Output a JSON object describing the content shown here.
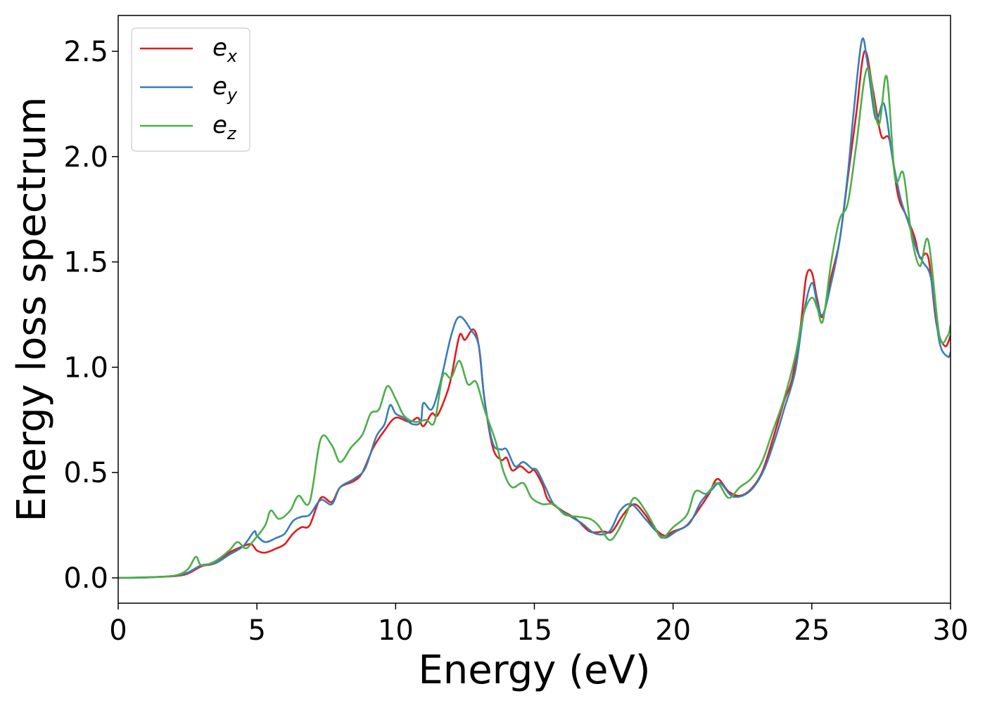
{
  "chart_data": {
    "type": "line",
    "xlabel": "Energy (eV)",
    "ylabel": "Energy loss spectrum",
    "xlim": [
      0,
      30
    ],
    "ylim": [
      -0.12,
      2.67
    ],
    "xticks": [
      0,
      5,
      10,
      15,
      20,
      25,
      30
    ],
    "xtick_labels": [
      "0",
      "5",
      "10",
      "15",
      "20",
      "25",
      "30"
    ],
    "yticks": [
      0.0,
      0.5,
      1.0,
      1.5,
      2.0,
      2.5
    ],
    "ytick_labels": [
      "0.0",
      "0.5",
      "1.0",
      "1.5",
      "2.0",
      "2.5"
    ],
    "grid": false,
    "legend_position": "top-left",
    "series": [
      {
        "name": "e",
        "subscript": "x",
        "color": "#e41a1c",
        "points": [
          [
            0,
            0
          ],
          [
            1,
            0.002
          ],
          [
            2,
            0.008
          ],
          [
            2.5,
            0.02
          ],
          [
            3,
            0.055
          ],
          [
            3.5,
            0.07
          ],
          [
            4,
            0.12
          ],
          [
            4.5,
            0.15
          ],
          [
            4.8,
            0.16
          ],
          [
            5,
            0.13
          ],
          [
            5.3,
            0.12
          ],
          [
            5.7,
            0.14
          ],
          [
            6,
            0.16
          ],
          [
            6.3,
            0.21
          ],
          [
            6.6,
            0.24
          ],
          [
            6.9,
            0.25
          ],
          [
            7.3,
            0.38
          ],
          [
            7.7,
            0.36
          ],
          [
            8,
            0.43
          ],
          [
            8.5,
            0.46
          ],
          [
            8.8,
            0.5
          ],
          [
            9.2,
            0.62
          ],
          [
            9.6,
            0.7
          ],
          [
            10,
            0.76
          ],
          [
            10.5,
            0.74
          ],
          [
            10.8,
            0.76
          ],
          [
            11.0,
            0.72
          ],
          [
            11.3,
            0.78
          ],
          [
            11.5,
            0.77
          ],
          [
            11.8,
            0.86
          ],
          [
            12,
            0.95
          ],
          [
            12.3,
            1.15
          ],
          [
            12.5,
            1.13
          ],
          [
            12.8,
            1.18
          ],
          [
            13,
            1.1
          ],
          [
            13.2,
            0.85
          ],
          [
            13.5,
            0.62
          ],
          [
            13.8,
            0.56
          ],
          [
            14,
            0.57
          ],
          [
            14.2,
            0.51
          ],
          [
            14.5,
            0.53
          ],
          [
            14.8,
            0.5
          ],
          [
            15,
            0.51
          ],
          [
            15.3,
            0.44
          ],
          [
            15.5,
            0.37
          ],
          [
            16,
            0.32
          ],
          [
            16.5,
            0.28
          ],
          [
            17,
            0.22
          ],
          [
            17.5,
            0.22
          ],
          [
            17.8,
            0.22
          ],
          [
            18.2,
            0.3
          ],
          [
            18.6,
            0.35
          ],
          [
            19,
            0.3
          ],
          [
            19.3,
            0.24
          ],
          [
            19.7,
            0.2
          ],
          [
            20,
            0.22
          ],
          [
            20.5,
            0.25
          ],
          [
            21,
            0.34
          ],
          [
            21.3,
            0.4
          ],
          [
            21.6,
            0.47
          ],
          [
            22,
            0.41
          ],
          [
            22.4,
            0.39
          ],
          [
            22.8,
            0.42
          ],
          [
            23.2,
            0.5
          ],
          [
            23.6,
            0.66
          ],
          [
            24,
            0.84
          ],
          [
            24.3,
            0.95
          ],
          [
            24.6,
            1.2
          ],
          [
            24.8,
            1.43
          ],
          [
            25,
            1.45
          ],
          [
            25.2,
            1.32
          ],
          [
            25.4,
            1.24
          ],
          [
            25.7,
            1.43
          ],
          [
            26,
            1.6
          ],
          [
            26.3,
            1.9
          ],
          [
            26.6,
            2.2
          ],
          [
            26.9,
            2.5
          ],
          [
            27.2,
            2.32
          ],
          [
            27.5,
            2.1
          ],
          [
            27.8,
            2.08
          ],
          [
            28.1,
            1.82
          ],
          [
            28.4,
            1.72
          ],
          [
            28.7,
            1.62
          ],
          [
            28.9,
            1.52
          ],
          [
            29.2,
            1.52
          ],
          [
            29.5,
            1.2
          ],
          [
            29.8,
            1.1
          ],
          [
            30,
            1.15
          ]
        ]
      },
      {
        "name": "e",
        "subscript": "y",
        "color": "#377eb8",
        "points": [
          [
            0,
            0
          ],
          [
            1,
            0.002
          ],
          [
            2,
            0.01
          ],
          [
            2.5,
            0.025
          ],
          [
            3,
            0.06
          ],
          [
            3.5,
            0.07
          ],
          [
            4,
            0.11
          ],
          [
            4.5,
            0.15
          ],
          [
            4.9,
            0.22
          ],
          [
            5,
            0.2
          ],
          [
            5.3,
            0.17
          ],
          [
            5.7,
            0.19
          ],
          [
            6,
            0.21
          ],
          [
            6.3,
            0.27
          ],
          [
            6.6,
            0.29
          ],
          [
            6.9,
            0.3
          ],
          [
            7.3,
            0.37
          ],
          [
            7.7,
            0.35
          ],
          [
            8,
            0.43
          ],
          [
            8.5,
            0.47
          ],
          [
            8.9,
            0.52
          ],
          [
            9.3,
            0.67
          ],
          [
            9.6,
            0.73
          ],
          [
            9.8,
            0.82
          ],
          [
            10,
            0.78
          ],
          [
            10.3,
            0.76
          ],
          [
            10.6,
            0.73
          ],
          [
            10.9,
            0.74
          ],
          [
            11,
            0.83
          ],
          [
            11.3,
            0.8
          ],
          [
            11.6,
            0.92
          ],
          [
            12,
            1.15
          ],
          [
            12.3,
            1.24
          ],
          [
            12.7,
            1.18
          ],
          [
            13,
            1.1
          ],
          [
            13.2,
            0.85
          ],
          [
            13.5,
            0.64
          ],
          [
            13.8,
            0.61
          ],
          [
            14,
            0.61
          ],
          [
            14.3,
            0.53
          ],
          [
            14.6,
            0.55
          ],
          [
            14.9,
            0.52
          ],
          [
            15.1,
            0.51
          ],
          [
            15.4,
            0.43
          ],
          [
            15.7,
            0.35
          ],
          [
            16.2,
            0.3
          ],
          [
            16.7,
            0.26
          ],
          [
            17.2,
            0.21
          ],
          [
            17.7,
            0.22
          ],
          [
            18.1,
            0.32
          ],
          [
            18.5,
            0.35
          ],
          [
            19,
            0.28
          ],
          [
            19.4,
            0.22
          ],
          [
            19.7,
            0.19
          ],
          [
            20.1,
            0.22
          ],
          [
            20.6,
            0.26
          ],
          [
            21,
            0.36
          ],
          [
            21.4,
            0.42
          ],
          [
            21.7,
            0.45
          ],
          [
            22.1,
            0.39
          ],
          [
            22.5,
            0.39
          ],
          [
            22.9,
            0.43
          ],
          [
            23.3,
            0.52
          ],
          [
            23.7,
            0.67
          ],
          [
            24,
            0.8
          ],
          [
            24.4,
            0.98
          ],
          [
            24.7,
            1.25
          ],
          [
            25,
            1.4
          ],
          [
            25.2,
            1.3
          ],
          [
            25.4,
            1.25
          ],
          [
            25.7,
            1.4
          ],
          [
            26,
            1.6
          ],
          [
            26.3,
            1.92
          ],
          [
            26.5,
            2.2
          ],
          [
            26.8,
            2.55
          ],
          [
            27,
            2.45
          ],
          [
            27.3,
            2.18
          ],
          [
            27.6,
            2.25
          ],
          [
            27.9,
            2.0
          ],
          [
            28.2,
            1.8
          ],
          [
            28.5,
            1.68
          ],
          [
            28.8,
            1.55
          ],
          [
            29,
            1.5
          ],
          [
            29.3,
            1.42
          ],
          [
            29.6,
            1.12
          ],
          [
            29.9,
            1.05
          ],
          [
            30,
            1.07
          ]
        ]
      },
      {
        "name": "e",
        "subscript": "z",
        "color": "#4daf4a",
        "points": [
          [
            0,
            0
          ],
          [
            1,
            0.003
          ],
          [
            2,
            0.01
          ],
          [
            2.5,
            0.04
          ],
          [
            2.8,
            0.1
          ],
          [
            3,
            0.06
          ],
          [
            3.5,
            0.08
          ],
          [
            4,
            0.13
          ],
          [
            4.3,
            0.17
          ],
          [
            4.6,
            0.14
          ],
          [
            4.9,
            0.18
          ],
          [
            5.3,
            0.25
          ],
          [
            5.5,
            0.32
          ],
          [
            5.8,
            0.28
          ],
          [
            6.2,
            0.32
          ],
          [
            6.5,
            0.39
          ],
          [
            6.9,
            0.36
          ],
          [
            7.3,
            0.66
          ],
          [
            7.7,
            0.63
          ],
          [
            8,
            0.55
          ],
          [
            8.4,
            0.62
          ],
          [
            8.8,
            0.68
          ],
          [
            9.1,
            0.78
          ],
          [
            9.4,
            0.8
          ],
          [
            9.7,
            0.91
          ],
          [
            10,
            0.85
          ],
          [
            10.3,
            0.77
          ],
          [
            10.7,
            0.74
          ],
          [
            11.1,
            0.75
          ],
          [
            11.4,
            0.74
          ],
          [
            11.7,
            0.96
          ],
          [
            12,
            0.95
          ],
          [
            12.3,
            1.03
          ],
          [
            12.6,
            0.92
          ],
          [
            12.9,
            0.93
          ],
          [
            13.2,
            0.8
          ],
          [
            13.6,
            0.65
          ],
          [
            13.9,
            0.5
          ],
          [
            14.2,
            0.43
          ],
          [
            14.6,
            0.45
          ],
          [
            14.9,
            0.38
          ],
          [
            15.3,
            0.35
          ],
          [
            15.7,
            0.35
          ],
          [
            16.1,
            0.3
          ],
          [
            16.6,
            0.29
          ],
          [
            17,
            0.28
          ],
          [
            17.3,
            0.25
          ],
          [
            17.7,
            0.18
          ],
          [
            18,
            0.22
          ],
          [
            18.3,
            0.3
          ],
          [
            18.6,
            0.38
          ],
          [
            19,
            0.32
          ],
          [
            19.3,
            0.25
          ],
          [
            19.6,
            0.19
          ],
          [
            20,
            0.24
          ],
          [
            20.5,
            0.3
          ],
          [
            20.8,
            0.41
          ],
          [
            21.2,
            0.4
          ],
          [
            21.6,
            0.45
          ],
          [
            22,
            0.38
          ],
          [
            22.4,
            0.43
          ],
          [
            22.8,
            0.47
          ],
          [
            23.2,
            0.55
          ],
          [
            23.6,
            0.7
          ],
          [
            24,
            0.85
          ],
          [
            24.4,
            1.05
          ],
          [
            24.7,
            1.25
          ],
          [
            25,
            1.33
          ],
          [
            25.2,
            1.28
          ],
          [
            25.4,
            1.22
          ],
          [
            25.7,
            1.5
          ],
          [
            26,
            1.7
          ],
          [
            26.3,
            1.78
          ],
          [
            26.6,
            2.05
          ],
          [
            27,
            2.42
          ],
          [
            27.4,
            2.15
          ],
          [
            27.7,
            2.38
          ],
          [
            28,
            1.9
          ],
          [
            28.3,
            1.92
          ],
          [
            28.6,
            1.62
          ],
          [
            28.9,
            1.48
          ],
          [
            29.2,
            1.6
          ],
          [
            29.6,
            1.15
          ],
          [
            29.9,
            1.15
          ],
          [
            30,
            1.2
          ]
        ]
      }
    ]
  }
}
